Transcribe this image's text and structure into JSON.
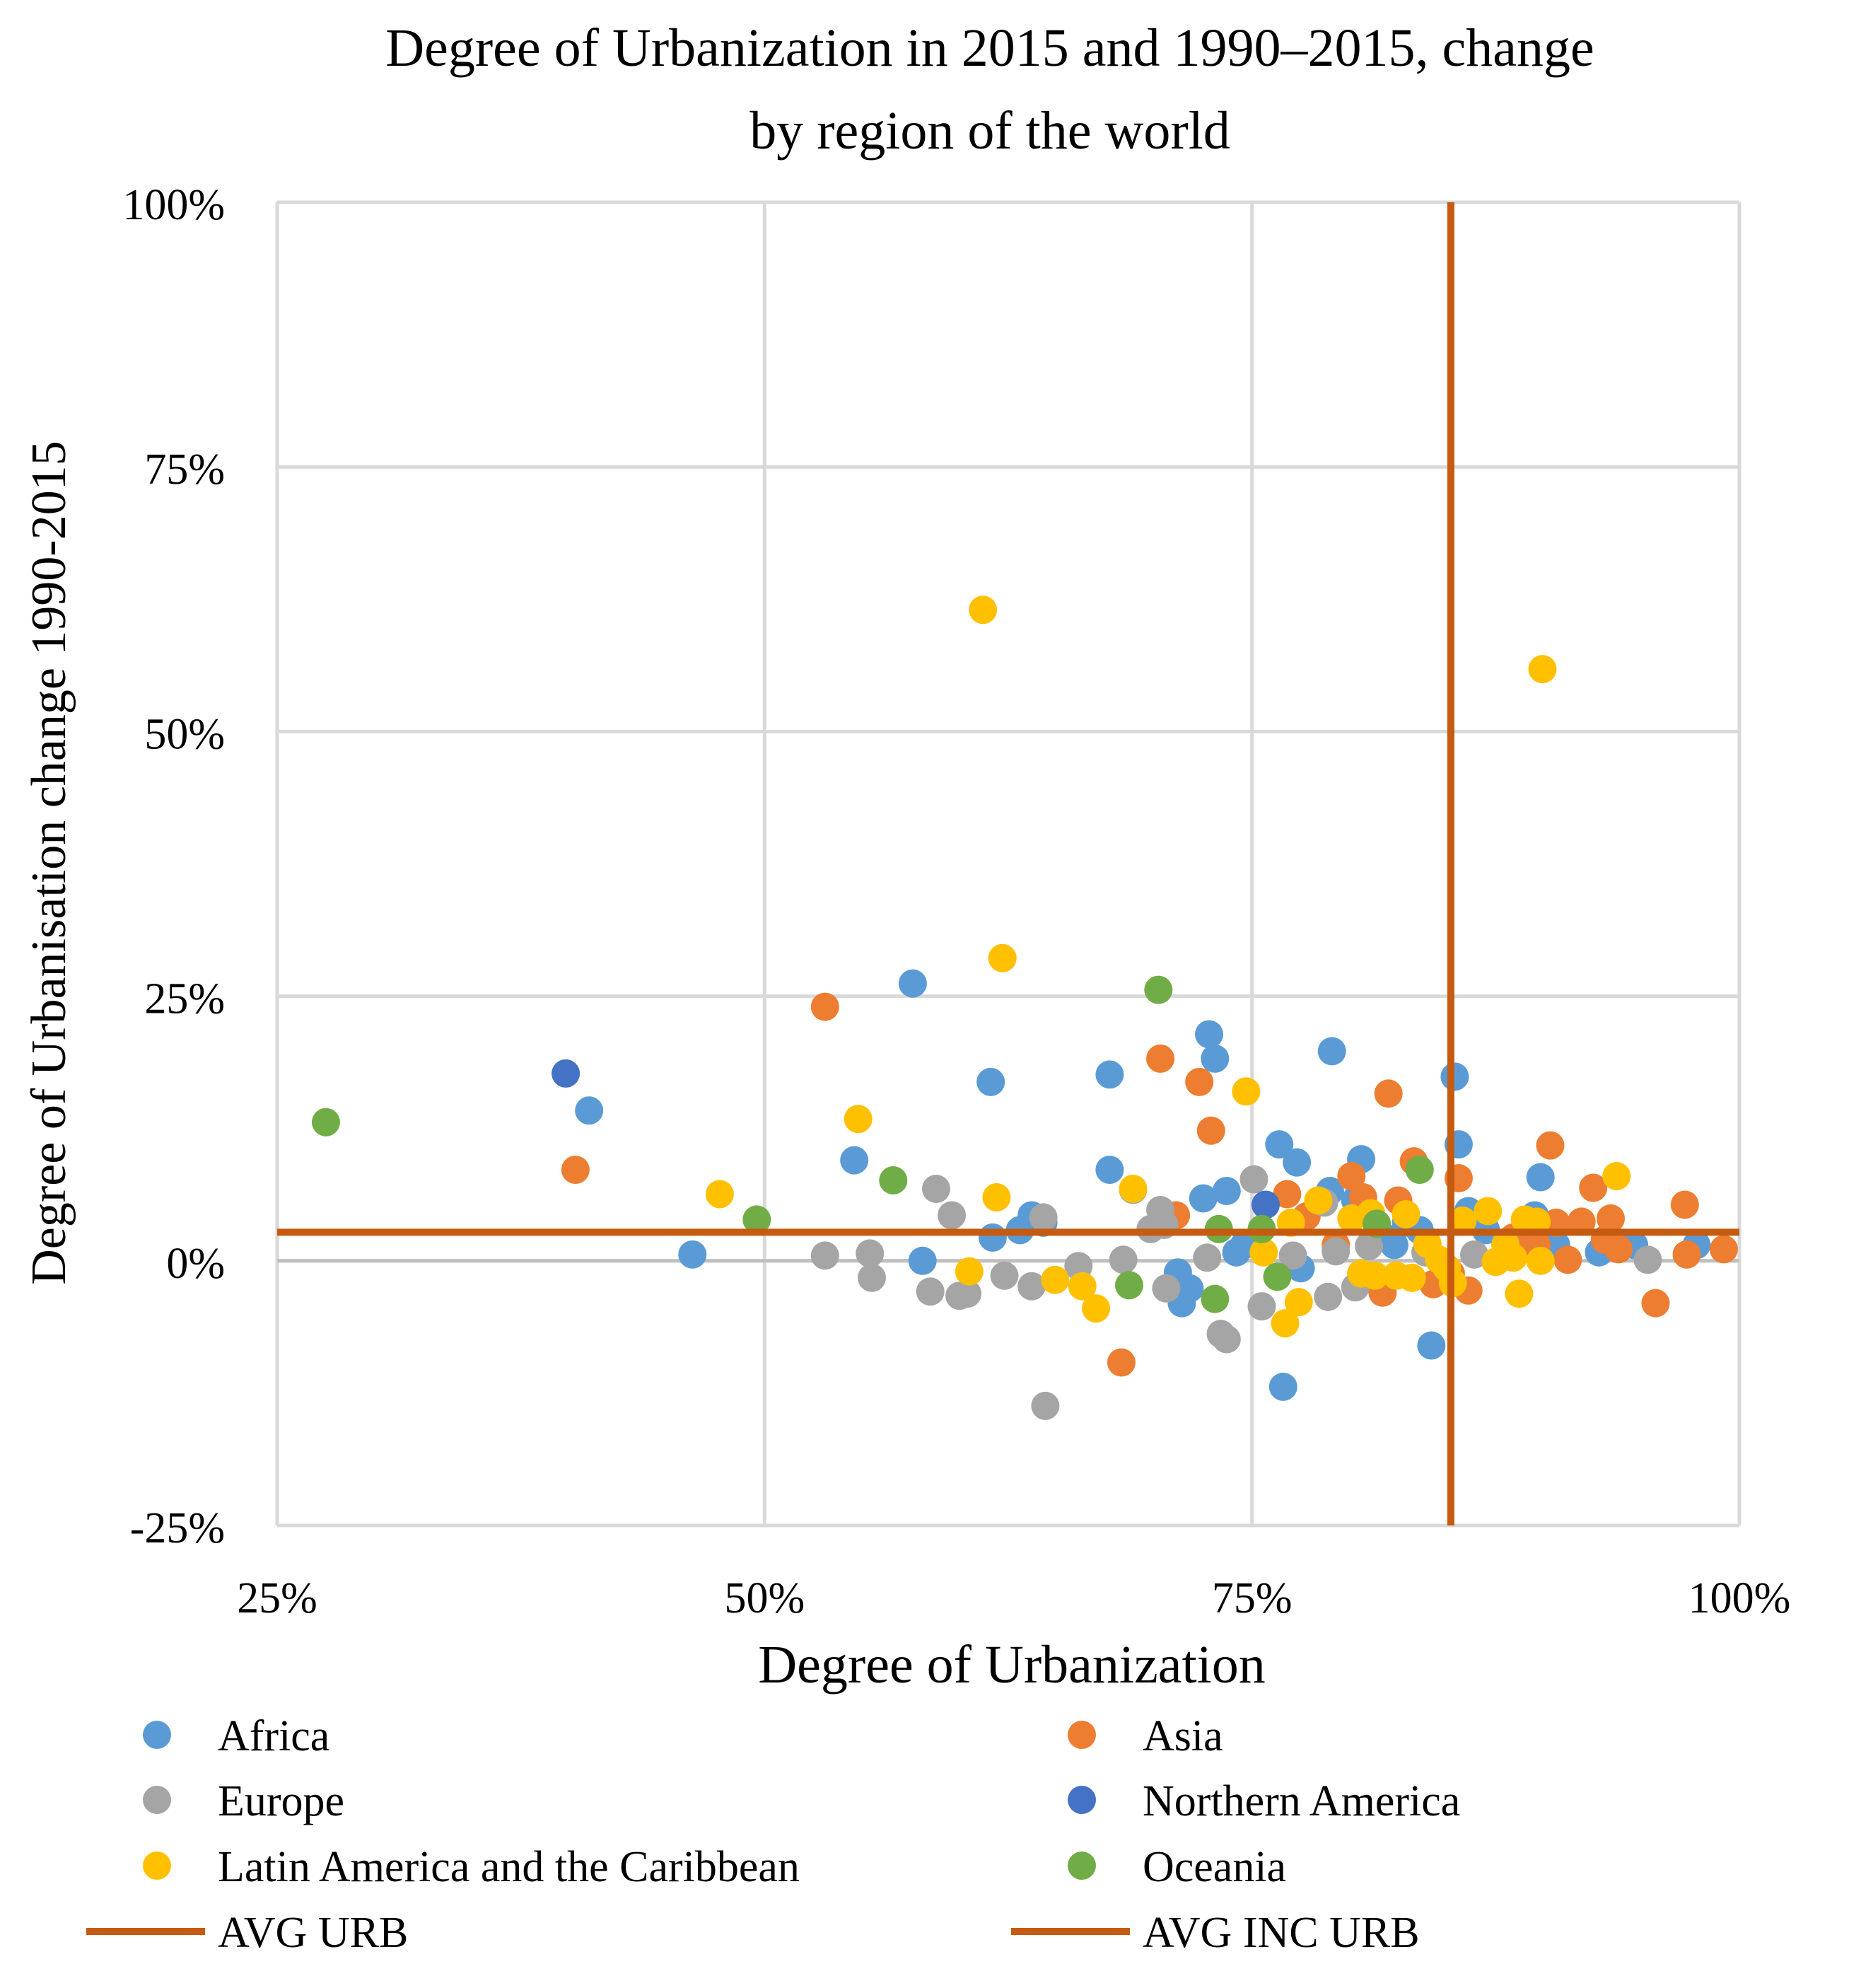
{
  "chart_data": {
    "type": "scatter",
    "title": "Degree of Urbanization in 2015 and 1990–2015, change by region of the world",
    "title_lines": [
      "Degree of Urbanization in 2015 and 1990–2015, change",
      "by region of the world"
    ],
    "xlabel": "Degree of Urbanization",
    "ylabel": "Degree of Urbanisation change 1990-2015",
    "xlim": [
      25,
      100
    ],
    "ylim": [
      -25,
      100
    ],
    "x_ticks": [
      25,
      50,
      75,
      100
    ],
    "y_ticks": [
      -25,
      0,
      25,
      50,
      75,
      100
    ],
    "x_tick_labels": [
      "25%",
      "50%",
      "75%",
      "100%"
    ],
    "y_tick_labels": [
      "-25%",
      "0%",
      "25%",
      "50%",
      "75%",
      "100%"
    ],
    "grid": true,
    "legend_position": "bottom",
    "series": [
      {
        "name": "Africa",
        "color": "#5B9BD5",
        "points": [
          [
            41.0,
            14.2
          ],
          [
            46.3,
            0.6
          ],
          [
            54.6,
            9.5
          ],
          [
            57.6,
            26.2
          ],
          [
            58.1,
            0.0
          ],
          [
            61.6,
            16.9
          ],
          [
            61.7,
            2.2
          ],
          [
            63.1,
            2.9
          ],
          [
            63.7,
            4.3
          ],
          [
            64.3,
            3.6
          ],
          [
            67.7,
            17.6
          ],
          [
            67.7,
            8.6
          ],
          [
            71.2,
            -1.1
          ],
          [
            71.4,
            -4.0
          ],
          [
            71.8,
            -2.6
          ],
          [
            72.5,
            5.9
          ],
          [
            72.8,
            21.4
          ],
          [
            73.1,
            19.1
          ],
          [
            73.7,
            6.6
          ],
          [
            74.2,
            0.8
          ],
          [
            74.6,
            1.5
          ],
          [
            76.4,
            11.0
          ],
          [
            76.6,
            -11.9
          ],
          [
            77.3,
            9.3
          ],
          [
            77.5,
            -0.7
          ],
          [
            79.0,
            6.6
          ],
          [
            79.1,
            19.8
          ],
          [
            80.3,
            5.7
          ],
          [
            80.6,
            9.6
          ],
          [
            81.8,
            2.2
          ],
          [
            82.3,
            1.5
          ],
          [
            82.9,
            3.6
          ],
          [
            83.6,
            2.9
          ],
          [
            84.2,
            -8.0
          ],
          [
            85.4,
            17.4
          ],
          [
            85.6,
            11.0
          ],
          [
            86.1,
            4.7
          ],
          [
            87.0,
            2.9
          ],
          [
            88.2,
            1.5
          ],
          [
            89.5,
            4.3
          ],
          [
            89.8,
            7.9
          ],
          [
            90.6,
            1.5
          ],
          [
            92.8,
            0.8
          ],
          [
            94.6,
            1.5
          ],
          [
            97.8,
            1.5
          ]
        ]
      },
      {
        "name": "Asia",
        "color": "#ED7D31",
        "points": [
          [
            40.3,
            8.6
          ],
          [
            53.1,
            24.0
          ],
          [
            68.3,
            -9.6
          ],
          [
            70.3,
            19.1
          ],
          [
            71.1,
            4.3
          ],
          [
            72.3,
            16.9
          ],
          [
            72.9,
            12.3
          ],
          [
            76.8,
            6.3
          ],
          [
            77.8,
            4.2
          ],
          [
            79.3,
            1.5
          ],
          [
            80.1,
            8.0
          ],
          [
            80.7,
            6.0
          ],
          [
            81.7,
            -3.0
          ],
          [
            82.0,
            15.8
          ],
          [
            82.5,
            5.7
          ],
          [
            83.3,
            9.4
          ],
          [
            84.3,
            -2.2
          ],
          [
            85.2,
            -1.2
          ],
          [
            85.6,
            7.8
          ],
          [
            86.1,
            -2.8
          ],
          [
            88.4,
            2.2
          ],
          [
            89.6,
            1.5
          ],
          [
            90.3,
            10.9
          ],
          [
            90.6,
            3.6
          ],
          [
            91.2,
            0.1
          ],
          [
            91.9,
            3.7
          ],
          [
            92.5,
            6.9
          ],
          [
            93.1,
            2.0
          ],
          [
            93.4,
            4.0
          ],
          [
            93.8,
            1.1
          ],
          [
            95.7,
            -4.0
          ],
          [
            97.2,
            5.3
          ],
          [
            97.3,
            0.6
          ],
          [
            99.2,
            1.1
          ]
        ]
      },
      {
        "name": "Europe",
        "color": "#A5A5A5",
        "points": [
          [
            53.1,
            0.5
          ],
          [
            55.4,
            0.7
          ],
          [
            55.5,
            -1.6
          ],
          [
            58.5,
            -2.9
          ],
          [
            58.8,
            6.8
          ],
          [
            59.6,
            4.3
          ],
          [
            60.0,
            -3.3
          ],
          [
            60.4,
            -3.1
          ],
          [
            62.3,
            -1.4
          ],
          [
            63.7,
            -2.4
          ],
          [
            64.3,
            4.1
          ],
          [
            64.4,
            -13.7
          ],
          [
            66.1,
            -0.5
          ],
          [
            68.4,
            0.1
          ],
          [
            68.9,
            6.7
          ],
          [
            69.8,
            3.0
          ],
          [
            70.3,
            4.8
          ],
          [
            70.5,
            3.4
          ],
          [
            70.6,
            -2.6
          ],
          [
            72.7,
            0.3
          ],
          [
            73.4,
            -6.9
          ],
          [
            73.7,
            -7.4
          ],
          [
            75.1,
            7.7
          ],
          [
            75.5,
            -4.3
          ],
          [
            77.1,
            0.5
          ],
          [
            78.7,
            5.5
          ],
          [
            78.9,
            -3.4
          ],
          [
            79.3,
            0.9
          ],
          [
            80.3,
            -2.5
          ],
          [
            81.0,
            1.4
          ],
          [
            83.9,
            0.8
          ],
          [
            86.4,
            0.6
          ],
          [
            88.0,
            1.6
          ],
          [
            95.3,
            0.1
          ]
        ]
      },
      {
        "name": "Northern America",
        "color": "#4472C4",
        "points": [
          [
            39.8,
            17.7
          ],
          [
            75.7,
            5.3
          ]
        ]
      },
      {
        "name": "Latin America and the Caribbean",
        "color": "#FFC000",
        "points": [
          [
            47.7,
            6.3
          ],
          [
            54.8,
            13.4
          ],
          [
            60.5,
            -1.0
          ],
          [
            61.2,
            61.5
          ],
          [
            61.9,
            6.0
          ],
          [
            62.2,
            28.6
          ],
          [
            64.9,
            -1.8
          ],
          [
            66.3,
            -2.4
          ],
          [
            67.0,
            -4.5
          ],
          [
            68.9,
            6.8
          ],
          [
            74.7,
            16.0
          ],
          [
            75.6,
            0.8
          ],
          [
            76.7,
            -5.9
          ],
          [
            77.0,
            3.6
          ],
          [
            77.4,
            -3.9
          ],
          [
            78.4,
            5.7
          ],
          [
            80.1,
            4.0
          ],
          [
            80.6,
            -1.2
          ],
          [
            81.1,
            4.5
          ],
          [
            81.3,
            -1.4
          ],
          [
            82.4,
            -1.4
          ],
          [
            82.9,
            4.4
          ],
          [
            83.2,
            -1.6
          ],
          [
            84.0,
            1.6
          ],
          [
            84.6,
            0.1
          ],
          [
            85.0,
            -0.7
          ],
          [
            85.3,
            -2.1
          ],
          [
            85.8,
            3.8
          ],
          [
            87.1,
            4.7
          ],
          [
            87.5,
            -0.1
          ],
          [
            88.0,
            1.5
          ],
          [
            88.4,
            0.3
          ],
          [
            88.7,
            -3.1
          ],
          [
            89.0,
            3.9
          ],
          [
            89.6,
            3.7
          ],
          [
            89.8,
            0.0
          ],
          [
            89.9,
            55.9
          ],
          [
            93.7,
            8.0
          ]
        ]
      },
      {
        "name": "Oceania",
        "color": "#70AD47",
        "points": [
          [
            27.5,
            13.1
          ],
          [
            49.6,
            3.9
          ],
          [
            56.6,
            7.6
          ],
          [
            68.7,
            -2.3
          ],
          [
            70.2,
            25.6
          ],
          [
            73.1,
            -3.6
          ],
          [
            73.3,
            3.0
          ],
          [
            75.5,
            3.0
          ],
          [
            76.3,
            -1.5
          ],
          [
            81.4,
            3.5
          ],
          [
            83.6,
            8.6
          ]
        ]
      }
    ],
    "reference_lines": [
      {
        "name": "AVG URB",
        "color": "#C55A11",
        "orientation": "horizontal",
        "value": 2.7
      },
      {
        "name": "AVG INC URB",
        "color": "#C55A11",
        "orientation": "vertical",
        "value": 85.2
      }
    ]
  }
}
